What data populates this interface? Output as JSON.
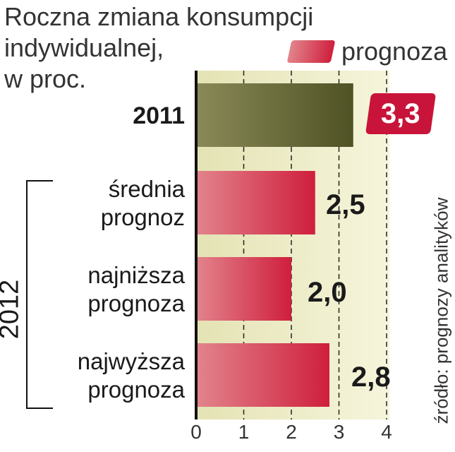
{
  "title": {
    "line1": "Roczna zmiana konsumpcji",
    "line2": "indywidualnej,",
    "line3": "w proc."
  },
  "legend": {
    "label": "prognoza",
    "color": "#cf1f3d"
  },
  "group_label": "2012",
  "source": "źródło: prognozy analityków",
  "colors": {
    "actual": "#4f5224",
    "forecast": "#cf1f3d",
    "background": "#f0efcc"
  },
  "chart_data": {
    "type": "bar",
    "orientation": "horizontal",
    "categories": [
      {
        "label_lines": [
          "2011"
        ],
        "value": 3.3,
        "value_label": "3,3",
        "kind": "actual"
      },
      {
        "label_lines": [
          "średnia",
          "prognoz"
        ],
        "value": 2.5,
        "value_label": "2,5",
        "kind": "forecast"
      },
      {
        "label_lines": [
          "najniższa",
          "prognoza"
        ],
        "value": 2.0,
        "value_label": "2,0",
        "kind": "forecast"
      },
      {
        "label_lines": [
          "najwyższa",
          "prognoza"
        ],
        "value": 2.8,
        "value_label": "2,8",
        "kind": "forecast"
      }
    ],
    "xlim": [
      0,
      4
    ],
    "ticks": [
      "0",
      "1",
      "2",
      "3",
      "4"
    ],
    "grid": true
  }
}
